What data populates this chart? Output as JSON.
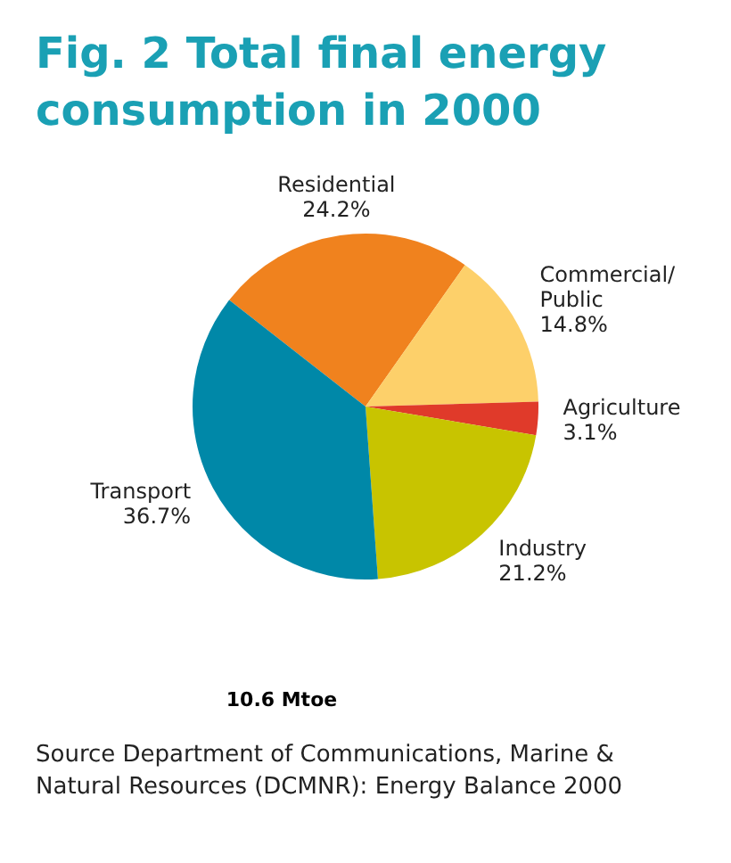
{
  "chart_data": {
    "type": "pie",
    "title": "Fig. 2  Total final energy consumption in 2000",
    "categories": [
      "Residential",
      "Commercial/Public",
      "Agriculture",
      "Industry",
      "Transport"
    ],
    "values": [
      24.2,
      14.8,
      3.1,
      21.2,
      36.7
    ],
    "value_labels": [
      "24.2%",
      "14.8%",
      "3.1%",
      "21.2%",
      "36.7%"
    ],
    "colors": [
      "#f0821e",
      "#fdd06a",
      "#e03a2a",
      "#c8c400",
      "#0088a8"
    ],
    "annotations": [
      "10.6 Mtoe",
      "Source Department of Communications, Marine & Natural Resources (DCMNR): Energy Balance 2000"
    ],
    "legend": false
  }
}
